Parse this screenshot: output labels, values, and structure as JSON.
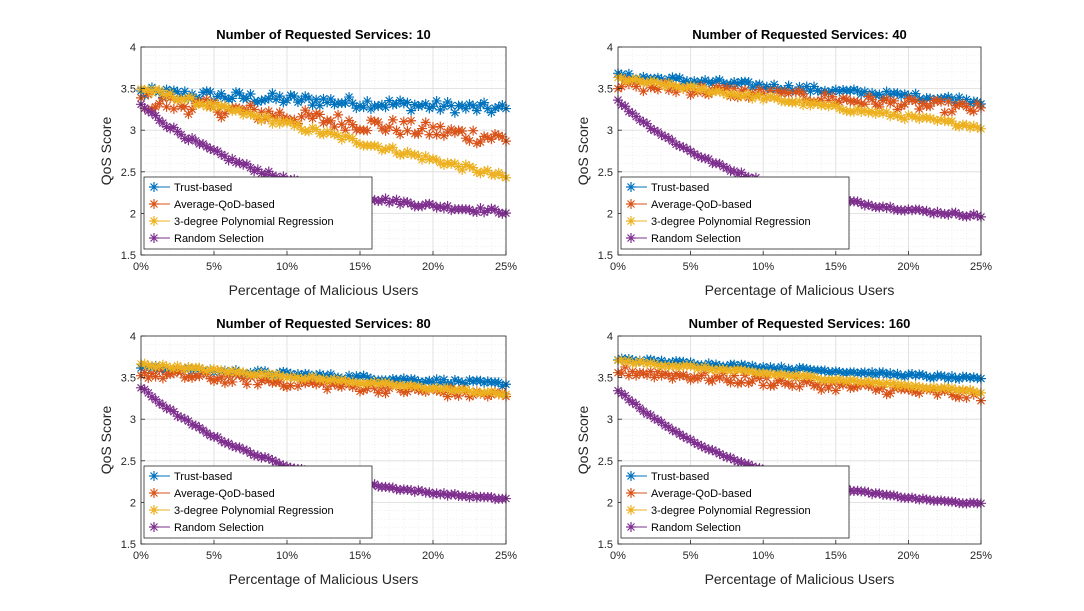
{
  "chart_data": [
    {
      "type": "scatter",
      "title": "Number of Requested Services: 10",
      "xlabel": "Percentage of Malicious Users",
      "ylabel": "QoS Score",
      "xlim": [
        0,
        25
      ],
      "ylim": [
        1.5,
        4
      ],
      "xticks": [
        "0%",
        "5%",
        "10%",
        "15%",
        "20%",
        "25%"
      ],
      "yticks": [
        "1.5",
        "2",
        "2.5",
        "3",
        "3.5",
        "4"
      ],
      "grid": true,
      "legend_position": "bottom-left",
      "series": [
        {
          "name": "Trust-based",
          "color": "#0072BD",
          "start": 3.45,
          "end": 3.25,
          "noise": 0.07
        },
        {
          "name": "Average-QoD-based",
          "color": "#D95319",
          "start": 3.35,
          "end": 2.9,
          "noise": 0.1
        },
        {
          "name": "3-degree Polynomial Regression",
          "color": "#EDB120",
          "start": 3.5,
          "end": 2.43,
          "noise": 0.04
        },
        {
          "name": "Random Selection",
          "color": "#7E2F8E",
          "start": 3.3,
          "end": 2.02,
          "noise": 0.03
        }
      ]
    },
    {
      "type": "scatter",
      "title": "Number of Requested Services: 40",
      "xlabel": "Percentage of Malicious Users",
      "ylabel": "QoS Score",
      "xlim": [
        0,
        25
      ],
      "ylim": [
        1.5,
        4
      ],
      "xticks": [
        "0%",
        "5%",
        "10%",
        "15%",
        "20%",
        "25%"
      ],
      "yticks": [
        "1.5",
        "2",
        "2.5",
        "3",
        "3.5",
        "4"
      ],
      "grid": true,
      "legend_position": "bottom-left",
      "series": [
        {
          "name": "Trust-based",
          "color": "#0072BD",
          "start": 3.65,
          "end": 3.35,
          "noise": 0.04
        },
        {
          "name": "Average-QoD-based",
          "color": "#D95319",
          "start": 3.55,
          "end": 3.25,
          "noise": 0.07
        },
        {
          "name": "3-degree Polynomial Regression",
          "color": "#EDB120",
          "start": 3.62,
          "end": 3.04,
          "noise": 0.03
        },
        {
          "name": "Random Selection",
          "color": "#7E2F8E",
          "start": 3.35,
          "end": 1.97,
          "noise": 0.02
        }
      ]
    },
    {
      "type": "scatter",
      "title": "Number of Requested Services: 80",
      "xlabel": "Percentage of Malicious Users",
      "ylabel": "QoS Score",
      "xlim": [
        0,
        25
      ],
      "ylim": [
        1.5,
        4
      ],
      "xticks": [
        "0%",
        "5%",
        "10%",
        "15%",
        "20%",
        "25%"
      ],
      "yticks": [
        "1.5",
        "2",
        "2.5",
        "3",
        "3.5",
        "4"
      ],
      "grid": true,
      "legend_position": "bottom-left",
      "series": [
        {
          "name": "Trust-based",
          "color": "#0072BD",
          "start": 3.62,
          "end": 3.42,
          "noise": 0.03
        },
        {
          "name": "Average-QoD-based",
          "color": "#D95319",
          "start": 3.55,
          "end": 3.28,
          "noise": 0.06
        },
        {
          "name": "3-degree Polynomial Regression",
          "color": "#EDB120",
          "start": 3.66,
          "end": 3.3,
          "noise": 0.02
        },
        {
          "name": "Random Selection",
          "color": "#7E2F8E",
          "start": 3.38,
          "end": 2.04,
          "noise": 0.015
        }
      ]
    },
    {
      "type": "scatter",
      "title": "Number of Requested Services: 160",
      "xlabel": "Percentage of Malicious Users",
      "ylabel": "QoS Score",
      "xlim": [
        0,
        25
      ],
      "ylim": [
        1.5,
        4
      ],
      "xticks": [
        "0%",
        "5%",
        "10%",
        "15%",
        "20%",
        "25%"
      ],
      "yticks": [
        "1.5",
        "2",
        "2.5",
        "3",
        "3.5",
        "4"
      ],
      "grid": true,
      "legend_position": "bottom-left",
      "series": [
        {
          "name": "Trust-based",
          "color": "#0072BD",
          "start": 3.72,
          "end": 3.48,
          "noise": 0.02
        },
        {
          "name": "Average-QoD-based",
          "color": "#D95319",
          "start": 3.58,
          "end": 3.28,
          "noise": 0.06
        },
        {
          "name": "3-degree Polynomial Regression",
          "color": "#EDB120",
          "start": 3.7,
          "end": 3.33,
          "noise": 0.02
        },
        {
          "name": "Random Selection",
          "color": "#7E2F8E",
          "start": 3.35,
          "end": 1.98,
          "noise": 0.01
        }
      ]
    }
  ]
}
